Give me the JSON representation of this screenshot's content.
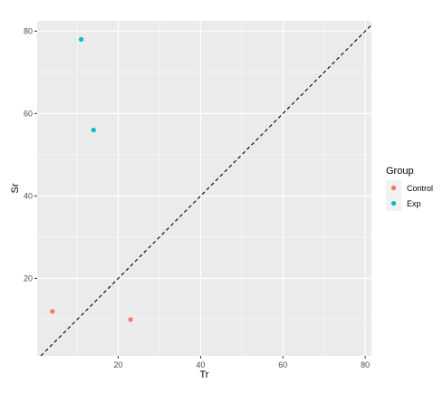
{
  "chart_data": {
    "type": "scatter",
    "xlabel": "Tr",
    "ylabel": "Sr",
    "xlim": [
      0.3,
      81.5
    ],
    "ylim": [
      1.2,
      82.5
    ],
    "x_ticks": [
      20,
      40,
      60,
      80
    ],
    "y_ticks": [
      20,
      40,
      60,
      80
    ],
    "grid": true,
    "legend": {
      "title": "Group",
      "position": "right",
      "entries": [
        {
          "name": "Control",
          "color": "#f8766d"
        },
        {
          "name": "Exp",
          "color": "#00bfc4"
        }
      ]
    },
    "series": [
      {
        "name": "Control",
        "color": "#f8766d",
        "points": [
          {
            "x": 4,
            "y": 12
          },
          {
            "x": 23,
            "y": 10
          }
        ]
      },
      {
        "name": "Exp",
        "color": "#00bfc4",
        "points": [
          {
            "x": 11,
            "y": 78
          },
          {
            "x": 14,
            "y": 56
          }
        ]
      }
    ],
    "reference_line": {
      "type": "identity",
      "style": "dashed",
      "color": "#000000"
    },
    "panel_background": "#ebebeb",
    "grid_color": "#ffffff"
  }
}
